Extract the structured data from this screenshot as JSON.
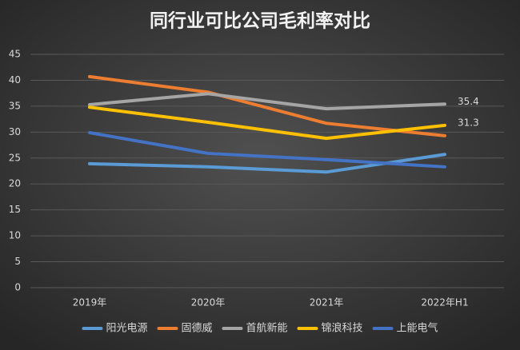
{
  "chart_data": {
    "type": "line",
    "title": "同行业可比公司毛利率对比",
    "categories": [
      "2019年",
      "2020年",
      "2021年",
      "2022年H1"
    ],
    "series": [
      {
        "name": "阳光电源",
        "color": "#5b9bd5",
        "values": [
          23.9,
          23.3,
          22.3,
          25.7
        ]
      },
      {
        "name": "固德威",
        "color": "#ed7d31",
        "values": [
          40.7,
          37.7,
          31.7,
          29.3
        ]
      },
      {
        "name": "首航新能",
        "color": "#a5a5a5",
        "values": [
          35.3,
          37.4,
          34.5,
          35.4
        ],
        "show_last_label": true
      },
      {
        "name": "锦浪科技",
        "color": "#ffc000",
        "values": [
          34.8,
          31.9,
          28.8,
          31.3
        ],
        "show_last_label": true
      },
      {
        "name": "上能电气",
        "color": "#4472c4",
        "values": [
          29.9,
          25.9,
          24.7,
          23.3
        ]
      }
    ],
    "ylim": [
      0,
      45
    ],
    "yticks": [
      0,
      5,
      10,
      15,
      20,
      25,
      30,
      35,
      40,
      45
    ],
    "grid": true,
    "legend": "bottom"
  }
}
